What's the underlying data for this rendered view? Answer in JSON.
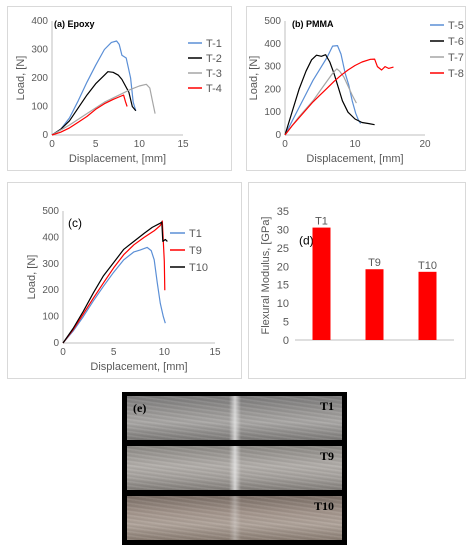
{
  "chart_data": [
    {
      "panel": "(a) Epoxy",
      "type": "line",
      "xlabel": "Displacement, [mm]",
      "ylabel": "Load, [N]",
      "xlim": [
        0,
        15
      ],
      "ylim": [
        0,
        400
      ],
      "xticks": [
        0,
        5,
        10,
        15
      ],
      "yticks": [
        0,
        100,
        200,
        300,
        400
      ],
      "grid": false,
      "legend": "right",
      "series": [
        {
          "name": "T-1",
          "color": "#5b8fd6",
          "points": [
            [
              0,
              0
            ],
            [
              1,
              20
            ],
            [
              2,
              60
            ],
            [
              3,
              120
            ],
            [
              4,
              185
            ],
            [
              5,
              245
            ],
            [
              6,
              300
            ],
            [
              6.8,
              325
            ],
            [
              7.4,
              330
            ],
            [
              7.7,
              318
            ],
            [
              8,
              280
            ],
            [
              8.5,
              270
            ],
            [
              9.0,
              200
            ],
            [
              9.3,
              115
            ],
            [
              9.6,
              85
            ]
          ]
        },
        {
          "name": "T-2",
          "color": "#000000",
          "points": [
            [
              0,
              0
            ],
            [
              1,
              20
            ],
            [
              2,
              50
            ],
            [
              3,
              95
            ],
            [
              4,
              140
            ],
            [
              5,
              180
            ],
            [
              6,
              210
            ],
            [
              6.4,
              222
            ],
            [
              7,
              220
            ],
            [
              7.6,
              210
            ],
            [
              8,
              195
            ],
            [
              8.8,
              150
            ],
            [
              9.2,
              100
            ],
            [
              9.6,
              85
            ]
          ]
        },
        {
          "name": "T-3",
          "color": "#a6a6a6",
          "points": [
            [
              0,
              0
            ],
            [
              2,
              35
            ],
            [
              4,
              75
            ],
            [
              6,
              115
            ],
            [
              8,
              145
            ],
            [
              9,
              160
            ],
            [
              10,
              172
            ],
            [
              10.8,
              178
            ],
            [
              11.2,
              165
            ],
            [
              11.5,
              120
            ],
            [
              11.8,
              75
            ]
          ]
        },
        {
          "name": "T-4",
          "color": "#ff0000",
          "points": [
            [
              0,
              0
            ],
            [
              1,
              10
            ],
            [
              2,
              25
            ],
            [
              3,
              45
            ],
            [
              4,
              65
            ],
            [
              5,
              90
            ],
            [
              6,
              110
            ],
            [
              7,
              125
            ],
            [
              7.8,
              135
            ],
            [
              8.2,
              140
            ],
            [
              8.4,
              118
            ],
            [
              8.6,
              100
            ]
          ]
        }
      ]
    },
    {
      "panel": "(b) PMMA",
      "type": "line",
      "xlabel": "Displacement, [mm]",
      "ylabel": "Load, [N]",
      "xlim": [
        0,
        20
      ],
      "ylim": [
        0,
        500
      ],
      "xticks": [
        0,
        10,
        20
      ],
      "yticks": [
        0,
        100,
        200,
        300,
        400,
        500
      ],
      "grid": false,
      "legend": "right",
      "series": [
        {
          "name": "T-5",
          "color": "#5b8fd6",
          "points": [
            [
              0,
              0
            ],
            [
              1,
              60
            ],
            [
              2,
              120
            ],
            [
              3,
              180
            ],
            [
              4,
              240
            ],
            [
              5,
              290
            ],
            [
              6,
              340
            ],
            [
              6.8,
              390
            ],
            [
              7.5,
              392
            ],
            [
              8,
              355
            ],
            [
              8.6,
              270
            ],
            [
              9.1,
              220
            ],
            [
              9.6,
              150
            ],
            [
              10.1,
              95
            ],
            [
              10.5,
              65
            ],
            [
              10.8,
              50
            ]
          ]
        },
        {
          "name": "T-6",
          "color": "#000000",
          "points": [
            [
              0,
              0
            ],
            [
              1,
              100
            ],
            [
              2,
              200
            ],
            [
              3,
              280
            ],
            [
              3.8,
              330
            ],
            [
              4.5,
              350
            ],
            [
              5.2,
              345
            ],
            [
              5.8,
              352
            ],
            [
              6.4,
              320
            ],
            [
              7,
              270
            ],
            [
              7.6,
              210
            ],
            [
              8.2,
              150
            ],
            [
              9,
              100
            ],
            [
              10,
              70
            ],
            [
              11,
              55
            ],
            [
              12,
              50
            ],
            [
              12.8,
              45
            ]
          ]
        },
        {
          "name": "T-7",
          "color": "#a6a6a6",
          "points": [
            [
              0,
              0
            ],
            [
              2,
              80
            ],
            [
              4,
              150
            ],
            [
              5.5,
              215
            ],
            [
              6.8,
              270
            ],
            [
              7.4,
              290
            ],
            [
              7.8,
              280
            ],
            [
              8.4,
              255
            ],
            [
              9,
              215
            ],
            [
              9.6,
              175
            ],
            [
              10.2,
              140
            ]
          ]
        },
        {
          "name": "T-8",
          "color": "#ff0000",
          "points": [
            [
              0,
              0
            ],
            [
              1,
              40
            ],
            [
              2,
              75
            ],
            [
              3,
              110
            ],
            [
              4,
              145
            ],
            [
              5,
              175
            ],
            [
              6,
              205
            ],
            [
              7,
              235
            ],
            [
              8,
              262
            ],
            [
              9,
              285
            ],
            [
              10,
              305
            ],
            [
              11,
              320
            ],
            [
              12.2,
              332
            ],
            [
              12.8,
              333
            ],
            [
              13.2,
              300
            ],
            [
              13.8,
              285
            ],
            [
              14.3,
              300
            ],
            [
              14.8,
              292
            ],
            [
              15.5,
              298
            ]
          ]
        }
      ]
    },
    {
      "panel": "(c)",
      "type": "line",
      "xlabel": "Displacement, [mm]",
      "ylabel": "Load, [N]",
      "xlim": [
        0,
        15
      ],
      "ylim": [
        0,
        500
      ],
      "xticks": [
        0,
        5,
        10,
        15
      ],
      "yticks": [
        0,
        100,
        200,
        300,
        400,
        500
      ],
      "grid": false,
      "legend": "right",
      "series": [
        {
          "name": "T1",
          "color": "#5b8fd6",
          "points": [
            [
              0,
              0
            ],
            [
              1,
              45
            ],
            [
              2,
              100
            ],
            [
              3,
              160
            ],
            [
              4,
              215
            ],
            [
              5,
              268
            ],
            [
              6,
              315
            ],
            [
              7,
              345
            ],
            [
              7.6,
              352
            ],
            [
              8.3,
              362
            ],
            [
              8.7,
              350
            ],
            [
              9,
              315
            ],
            [
              9.3,
              230
            ],
            [
              9.6,
              150
            ],
            [
              9.9,
              100
            ],
            [
              10.1,
              75
            ]
          ]
        },
        {
          "name": "T9",
          "color": "#ff0000",
          "points": [
            [
              0,
              0
            ],
            [
              1,
              50
            ],
            [
              2,
              110
            ],
            [
              3,
              170
            ],
            [
              4,
              228
            ],
            [
              5,
              285
            ],
            [
              6,
              335
            ],
            [
              7,
              372
            ],
            [
              8,
              400
            ],
            [
              9,
              425
            ],
            [
              9.6,
              445
            ],
            [
              9.8,
              462
            ],
            [
              10.0,
              310
            ],
            [
              10.05,
              200
            ]
          ]
        },
        {
          "name": "T10",
          "color": "#000000",
          "points": [
            [
              0,
              0
            ],
            [
              1,
              55
            ],
            [
              2,
              120
            ],
            [
              3,
              190
            ],
            [
              4,
              255
            ],
            [
              5,
              305
            ],
            [
              6,
              355
            ],
            [
              7,
              385
            ],
            [
              8,
              415
            ],
            [
              8.8,
              438
            ],
            [
              9.5,
              452
            ],
            [
              9.75,
              458
            ],
            [
              9.85,
              385
            ],
            [
              10.1,
              392
            ],
            [
              10.3,
              385
            ]
          ]
        }
      ]
    },
    {
      "panel": "(d)",
      "type": "bar",
      "ylabel": "Flexural Modulus, [GPa]",
      "ylim": [
        0,
        35
      ],
      "yticks": [
        0,
        5,
        10,
        15,
        20,
        25,
        30,
        35
      ],
      "grid": false,
      "categories": [
        "T1",
        "T9",
        "T10"
      ],
      "values": [
        30.5,
        19.2,
        18.5
      ],
      "color": "#ff0000"
    }
  ],
  "photo": {
    "panel_label": "(e)",
    "strips": [
      {
        "label": "T1"
      },
      {
        "label": "T9"
      },
      {
        "label": "T10"
      }
    ]
  }
}
